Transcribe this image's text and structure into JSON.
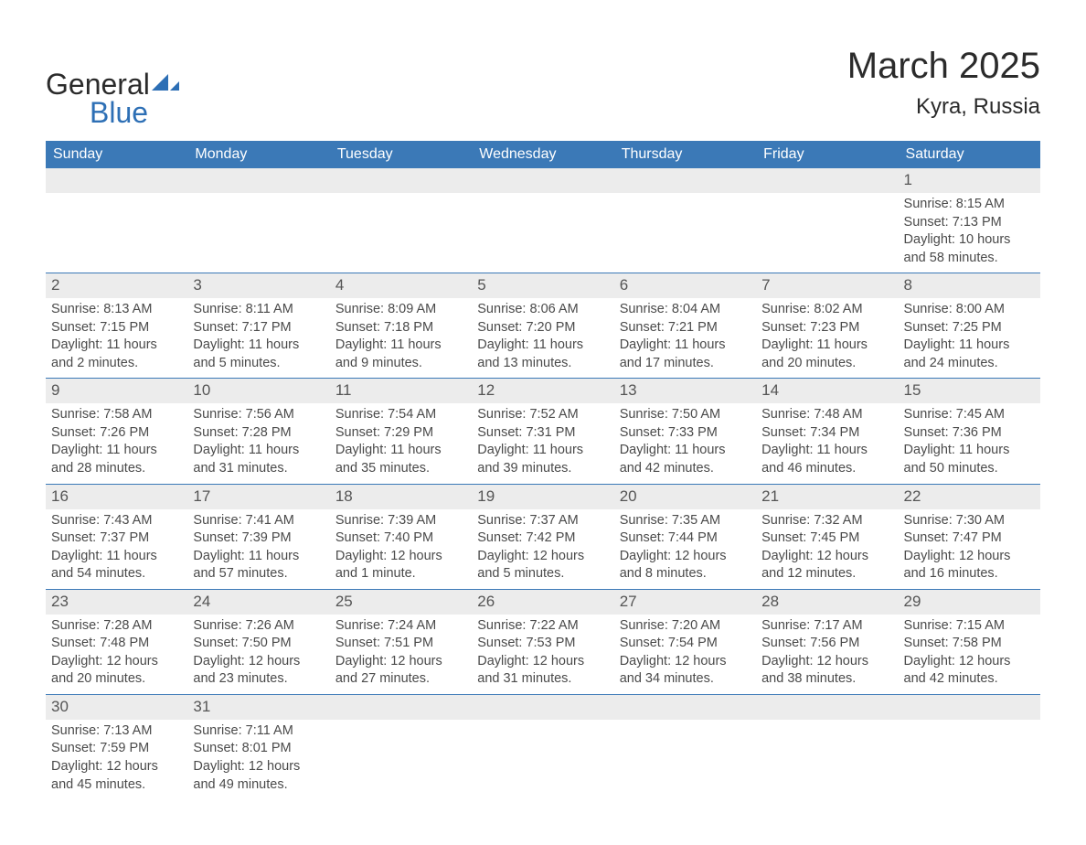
{
  "logo": {
    "word1": "General",
    "word2": "Blue",
    "color_text": "#2b2b2b",
    "color_blue": "#2d6fb5"
  },
  "title": "March 2025",
  "location": "Kyra, Russia",
  "colors": {
    "header_bg": "#3b79b7",
    "header_text": "#ffffff",
    "daynum_bg": "#ececec",
    "border": "#3b79b7",
    "body_text": "#4a4a4a"
  },
  "day_headers": [
    "Sunday",
    "Monday",
    "Tuesday",
    "Wednesday",
    "Thursday",
    "Friday",
    "Saturday"
  ],
  "weeks": [
    [
      null,
      null,
      null,
      null,
      null,
      null,
      {
        "n": "1",
        "sr": "8:15 AM",
        "ss": "7:13 PM",
        "dl": "10 hours and 58 minutes."
      }
    ],
    [
      {
        "n": "2",
        "sr": "8:13 AM",
        "ss": "7:15 PM",
        "dl": "11 hours and 2 minutes."
      },
      {
        "n": "3",
        "sr": "8:11 AM",
        "ss": "7:17 PM",
        "dl": "11 hours and 5 minutes."
      },
      {
        "n": "4",
        "sr": "8:09 AM",
        "ss": "7:18 PM",
        "dl": "11 hours and 9 minutes."
      },
      {
        "n": "5",
        "sr": "8:06 AM",
        "ss": "7:20 PM",
        "dl": "11 hours and 13 minutes."
      },
      {
        "n": "6",
        "sr": "8:04 AM",
        "ss": "7:21 PM",
        "dl": "11 hours and 17 minutes."
      },
      {
        "n": "7",
        "sr": "8:02 AM",
        "ss": "7:23 PM",
        "dl": "11 hours and 20 minutes."
      },
      {
        "n": "8",
        "sr": "8:00 AM",
        "ss": "7:25 PM",
        "dl": "11 hours and 24 minutes."
      }
    ],
    [
      {
        "n": "9",
        "sr": "7:58 AM",
        "ss": "7:26 PM",
        "dl": "11 hours and 28 minutes."
      },
      {
        "n": "10",
        "sr": "7:56 AM",
        "ss": "7:28 PM",
        "dl": "11 hours and 31 minutes."
      },
      {
        "n": "11",
        "sr": "7:54 AM",
        "ss": "7:29 PM",
        "dl": "11 hours and 35 minutes."
      },
      {
        "n": "12",
        "sr": "7:52 AM",
        "ss": "7:31 PM",
        "dl": "11 hours and 39 minutes."
      },
      {
        "n": "13",
        "sr": "7:50 AM",
        "ss": "7:33 PM",
        "dl": "11 hours and 42 minutes."
      },
      {
        "n": "14",
        "sr": "7:48 AM",
        "ss": "7:34 PM",
        "dl": "11 hours and 46 minutes."
      },
      {
        "n": "15",
        "sr": "7:45 AM",
        "ss": "7:36 PM",
        "dl": "11 hours and 50 minutes."
      }
    ],
    [
      {
        "n": "16",
        "sr": "7:43 AM",
        "ss": "7:37 PM",
        "dl": "11 hours and 54 minutes."
      },
      {
        "n": "17",
        "sr": "7:41 AM",
        "ss": "7:39 PM",
        "dl": "11 hours and 57 minutes."
      },
      {
        "n": "18",
        "sr": "7:39 AM",
        "ss": "7:40 PM",
        "dl": "12 hours and 1 minute."
      },
      {
        "n": "19",
        "sr": "7:37 AM",
        "ss": "7:42 PM",
        "dl": "12 hours and 5 minutes."
      },
      {
        "n": "20",
        "sr": "7:35 AM",
        "ss": "7:44 PM",
        "dl": "12 hours and 8 minutes."
      },
      {
        "n": "21",
        "sr": "7:32 AM",
        "ss": "7:45 PM",
        "dl": "12 hours and 12 minutes."
      },
      {
        "n": "22",
        "sr": "7:30 AM",
        "ss": "7:47 PM",
        "dl": "12 hours and 16 minutes."
      }
    ],
    [
      {
        "n": "23",
        "sr": "7:28 AM",
        "ss": "7:48 PM",
        "dl": "12 hours and 20 minutes."
      },
      {
        "n": "24",
        "sr": "7:26 AM",
        "ss": "7:50 PM",
        "dl": "12 hours and 23 minutes."
      },
      {
        "n": "25",
        "sr": "7:24 AM",
        "ss": "7:51 PM",
        "dl": "12 hours and 27 minutes."
      },
      {
        "n": "26",
        "sr": "7:22 AM",
        "ss": "7:53 PM",
        "dl": "12 hours and 31 minutes."
      },
      {
        "n": "27",
        "sr": "7:20 AM",
        "ss": "7:54 PM",
        "dl": "12 hours and 34 minutes."
      },
      {
        "n": "28",
        "sr": "7:17 AM",
        "ss": "7:56 PM",
        "dl": "12 hours and 38 minutes."
      },
      {
        "n": "29",
        "sr": "7:15 AM",
        "ss": "7:58 PM",
        "dl": "12 hours and 42 minutes."
      }
    ],
    [
      {
        "n": "30",
        "sr": "7:13 AM",
        "ss": "7:59 PM",
        "dl": "12 hours and 45 minutes."
      },
      {
        "n": "31",
        "sr": "7:11 AM",
        "ss": "8:01 PM",
        "dl": "12 hours and 49 minutes."
      },
      null,
      null,
      null,
      null,
      null
    ]
  ],
  "labels": {
    "sunrise": "Sunrise: ",
    "sunset": "Sunset: ",
    "daylight": "Daylight: "
  }
}
